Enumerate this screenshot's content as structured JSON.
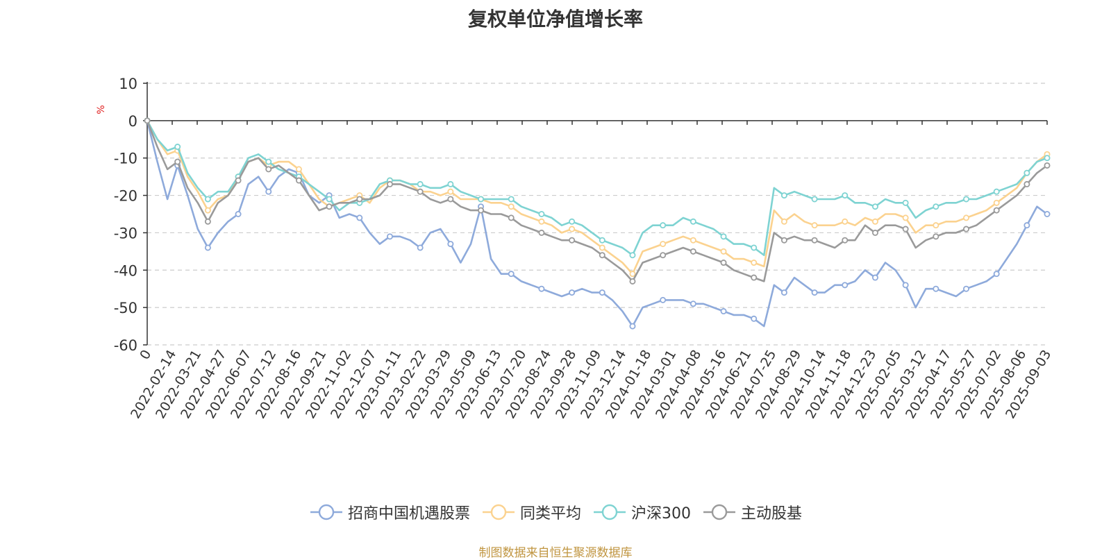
{
  "chart_data": {
    "type": "line",
    "title": "复权单位净值增长率",
    "ylabel": "%",
    "ylim": [
      -60,
      10
    ],
    "yticks": [
      10,
      0,
      -10,
      -20,
      -30,
      -40,
      -50,
      -60
    ],
    "grid": true,
    "legend_position": "bottom",
    "xtick_labels": [
      "0",
      "2022-02-14",
      "2022-03-21",
      "2022-04-27",
      "2022-06-07",
      "2022-07-12",
      "2022-08-16",
      "2022-09-21",
      "2022-11-02",
      "2022-12-07",
      "2023-01-11",
      "2023-02-22",
      "2023-03-29",
      "2023-05-09",
      "2023-06-13",
      "2023-07-20",
      "2023-08-24",
      "2023-09-28",
      "2023-11-09",
      "2023-12-14",
      "2024-01-18",
      "2024-03-01",
      "2024-04-08",
      "2024-05-16",
      "2024-06-21",
      "2024-07-25",
      "2024-08-29",
      "2024-10-14",
      "2024-11-18",
      "2024-12-23",
      "2025-02-05",
      "2025-03-12",
      "2025-04-17",
      "2025-05-27",
      "2025-07-02",
      "2025-08-06",
      "2025-09-03"
    ],
    "series": [
      {
        "name": "招商中国机遇股票",
        "color": "#8eaadb",
        "values": [
          0,
          -11,
          -21,
          -12,
          -20,
          -29,
          -34,
          -30,
          -27,
          -25,
          -17,
          -15,
          -19,
          -15,
          -13,
          -14,
          -20,
          -22,
          -20,
          -26,
          -25,
          -26,
          -30,
          -33,
          -31,
          -31,
          -32,
          -34,
          -30,
          -29,
          -33,
          -38,
          -33,
          -23,
          -37,
          -41,
          -41,
          -43,
          -44,
          -45,
          -46,
          -47,
          -46,
          -45,
          -46,
          -46,
          -48,
          -51,
          -55,
          -50,
          -49,
          -48,
          -48,
          -48,
          -49,
          -49,
          -50,
          -51,
          -52,
          -52,
          -53,
          -55,
          -44,
          -46,
          -42,
          -44,
          -46,
          -46,
          -44,
          -44,
          -43,
          -40,
          -42,
          -38,
          -40,
          -44,
          -50,
          -45,
          -45,
          -46,
          -47,
          -45,
          -44,
          -43,
          -41,
          -37,
          -33,
          -28,
          -23,
          -25
        ]
      },
      {
        "name": "同类平均",
        "color": "#fbd28f",
        "values": [
          0,
          -5,
          -9,
          -8,
          -15,
          -19,
          -24,
          -21,
          -20,
          -15,
          -11,
          -10,
          -12,
          -11,
          -11,
          -13,
          -17,
          -21,
          -23,
          -22,
          -21,
          -20,
          -22,
          -18,
          -16,
          -16,
          -17,
          -19,
          -19,
          -20,
          -19,
          -21,
          -21,
          -21,
          -22,
          -22,
          -23,
          -25,
          -26,
          -27,
          -28,
          -30,
          -29,
          -30,
          -32,
          -34,
          -36,
          -38,
          -41,
          -35,
          -34,
          -33,
          -32,
          -31,
          -32,
          -33,
          -34,
          -35,
          -37,
          -37,
          -38,
          -39,
          -24,
          -27,
          -25,
          -27,
          -28,
          -28,
          -28,
          -27,
          -28,
          -26,
          -27,
          -25,
          -25,
          -26,
          -30,
          -28,
          -28,
          -27,
          -27,
          -26,
          -25,
          -24,
          -22,
          -20,
          -18,
          -14,
          -11,
          -9
        ]
      },
      {
        "name": "沪深300",
        "color": "#7ed3d2",
        "values": [
          0,
          -5,
          -8,
          -7,
          -14,
          -18,
          -21,
          -19,
          -19,
          -15,
          -10,
          -9,
          -11,
          -13,
          -14,
          -15,
          -17,
          -19,
          -21,
          -24,
          -22,
          -22,
          -21,
          -17,
          -16,
          -16,
          -17,
          -17,
          -18,
          -18,
          -17,
          -19,
          -20,
          -21,
          -21,
          -21,
          -21,
          -23,
          -24,
          -25,
          -26,
          -28,
          -27,
          -28,
          -30,
          -32,
          -33,
          -34,
          -36,
          -30,
          -28,
          -28,
          -28,
          -26,
          -27,
          -28,
          -29,
          -31,
          -33,
          -33,
          -34,
          -36,
          -18,
          -20,
          -19,
          -20,
          -21,
          -21,
          -21,
          -20,
          -22,
          -22,
          -23,
          -21,
          -22,
          -22,
          -26,
          -24,
          -23,
          -22,
          -22,
          -21,
          -21,
          -20,
          -19,
          -18,
          -17,
          -14,
          -11,
          -10
        ]
      },
      {
        "name": "主动股基",
        "color": "#9a9a9a",
        "values": [
          0,
          -7,
          -13,
          -11,
          -18,
          -22,
          -27,
          -22,
          -20,
          -16,
          -11,
          -10,
          -13,
          -12,
          -14,
          -16,
          -20,
          -24,
          -23,
          -22,
          -22,
          -21,
          -21,
          -20,
          -17,
          -17,
          -18,
          -19,
          -21,
          -22,
          -21,
          -23,
          -24,
          -24,
          -25,
          -25,
          -26,
          -28,
          -29,
          -30,
          -31,
          -32,
          -32,
          -33,
          -34,
          -36,
          -38,
          -40,
          -43,
          -38,
          -37,
          -36,
          -35,
          -34,
          -35,
          -36,
          -37,
          -38,
          -40,
          -41,
          -42,
          -43,
          -30,
          -32,
          -31,
          -32,
          -32,
          -33,
          -34,
          -32,
          -32,
          -28,
          -30,
          -28,
          -28,
          -29,
          -34,
          -32,
          -31,
          -30,
          -30,
          -29,
          -28,
          -26,
          -24,
          -22,
          -20,
          -17,
          -14,
          -12
        ]
      }
    ],
    "source": "制图数据来自恒生聚源数据库"
  }
}
